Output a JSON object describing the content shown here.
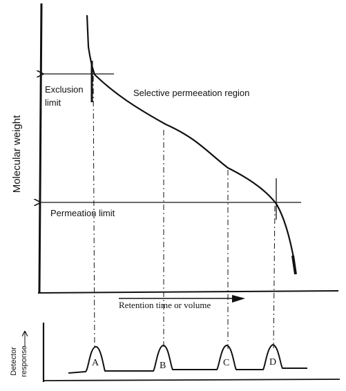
{
  "diagram": {
    "y_axis_label": "Molecular weight",
    "x_axis_label": "Retention time or volume",
    "exclusion_label_line1": "Exclusion",
    "exclusion_label_line2": "limit",
    "region_label": "Selective permeeation region",
    "permeation_label": "Permeation limit",
    "detector_label_line1": "Detector",
    "detector_label_line2": "response",
    "peaks": [
      "A",
      "B",
      "C",
      "D"
    ]
  },
  "colors": {
    "ink": "#111111",
    "background": "#ffffff"
  }
}
